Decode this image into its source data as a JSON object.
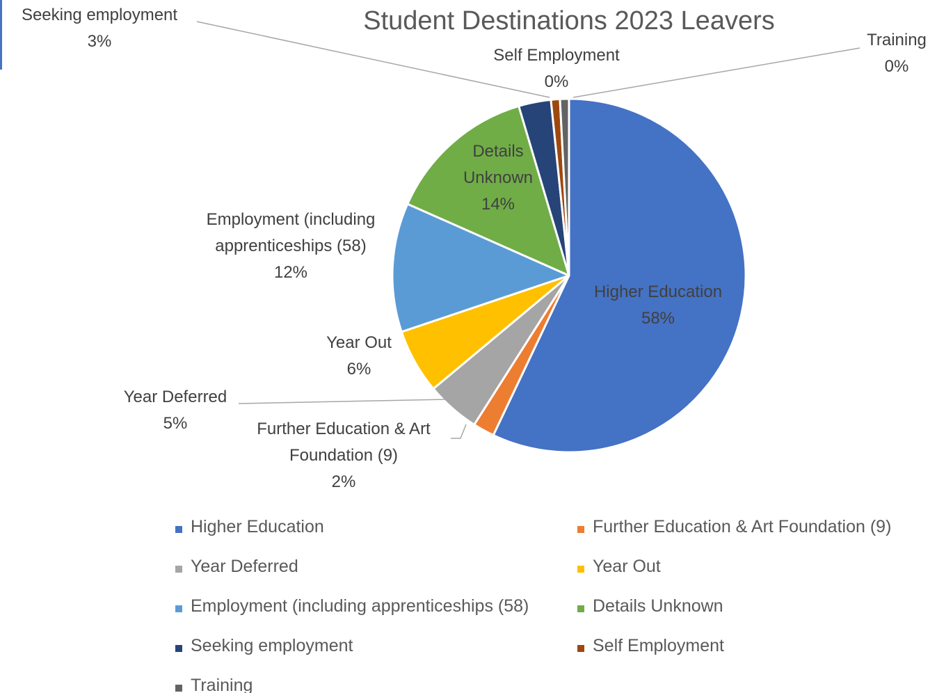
{
  "chart_data": {
    "type": "pie",
    "title": "Student Destinations 2023 Leavers",
    "legend_position": "bottom",
    "slices": [
      {
        "name": "Higher Education",
        "value": 58,
        "label_lines": [
          "Higher Education",
          "58%"
        ],
        "color": "#4472C4"
      },
      {
        "name": "Further Education & Art Foundation (9)",
        "value": 2,
        "label_lines": [
          "Further Education & Art",
          "Foundation (9)",
          "2%"
        ],
        "color": "#ED7D31"
      },
      {
        "name": "Year Deferred",
        "value": 5,
        "label_lines": [
          "Year Deferred",
          "5%"
        ],
        "color": "#A5A5A5"
      },
      {
        "name": "Year Out",
        "value": 6,
        "label_lines": [
          "Year Out",
          "6%"
        ],
        "color": "#FFC000"
      },
      {
        "name": "Employment (including apprenticeships (58)",
        "value": 12,
        "label_lines": [
          "Employment (including",
          "apprenticeships (58)",
          "12%"
        ],
        "color": "#5B9BD5"
      },
      {
        "name": "Details Unknown",
        "value": 14,
        "label_lines": [
          "Details",
          "Unknown",
          "14%"
        ],
        "color": "#70AD47"
      },
      {
        "name": "Seeking employment",
        "value": 3,
        "label_lines": [
          "Seeking employment",
          "3%"
        ],
        "color": "#264478"
      },
      {
        "name": "Self Employment",
        "value": 0,
        "label_lines": [
          "Self Employment",
          "0%"
        ],
        "color": "#9E480E"
      },
      {
        "name": "Training",
        "value": 0,
        "label_lines": [
          "Training",
          "0%"
        ],
        "color": "#636363"
      }
    ]
  }
}
